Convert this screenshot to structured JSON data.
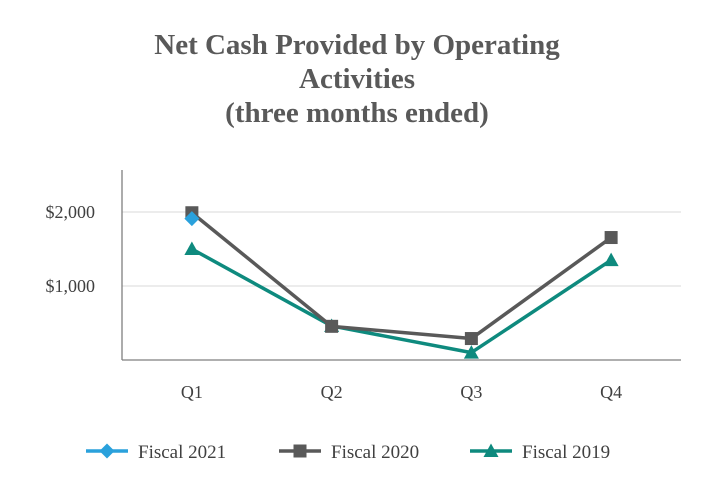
{
  "chart_data": {
    "type": "line",
    "title_lines": [
      "Net Cash Provided by Operating",
      "Activities",
      "(three months ended)"
    ],
    "categories": [
      "Q1",
      "Q2",
      "Q3",
      "Q4"
    ],
    "y_ticks": [
      {
        "value": 1000,
        "label": "$1,000"
      },
      {
        "value": 2000,
        "label": "$2,000"
      }
    ],
    "ylim": [
      0,
      2500
    ],
    "grid": true,
    "legend_position": "bottom",
    "series": [
      {
        "name": "Fiscal 2021",
        "color": "#2AA1DC",
        "marker": "diamond",
        "values": [
          1910,
          null,
          null,
          null
        ]
      },
      {
        "name": "Fiscal 2020",
        "color": "#595959",
        "marker": "square",
        "values": [
          1990,
          455,
          290,
          1655
        ]
      },
      {
        "name": "Fiscal 2019",
        "color": "#0E8A7E",
        "marker": "triangle",
        "values": [
          1500,
          460,
          100,
          1350
        ]
      }
    ]
  }
}
